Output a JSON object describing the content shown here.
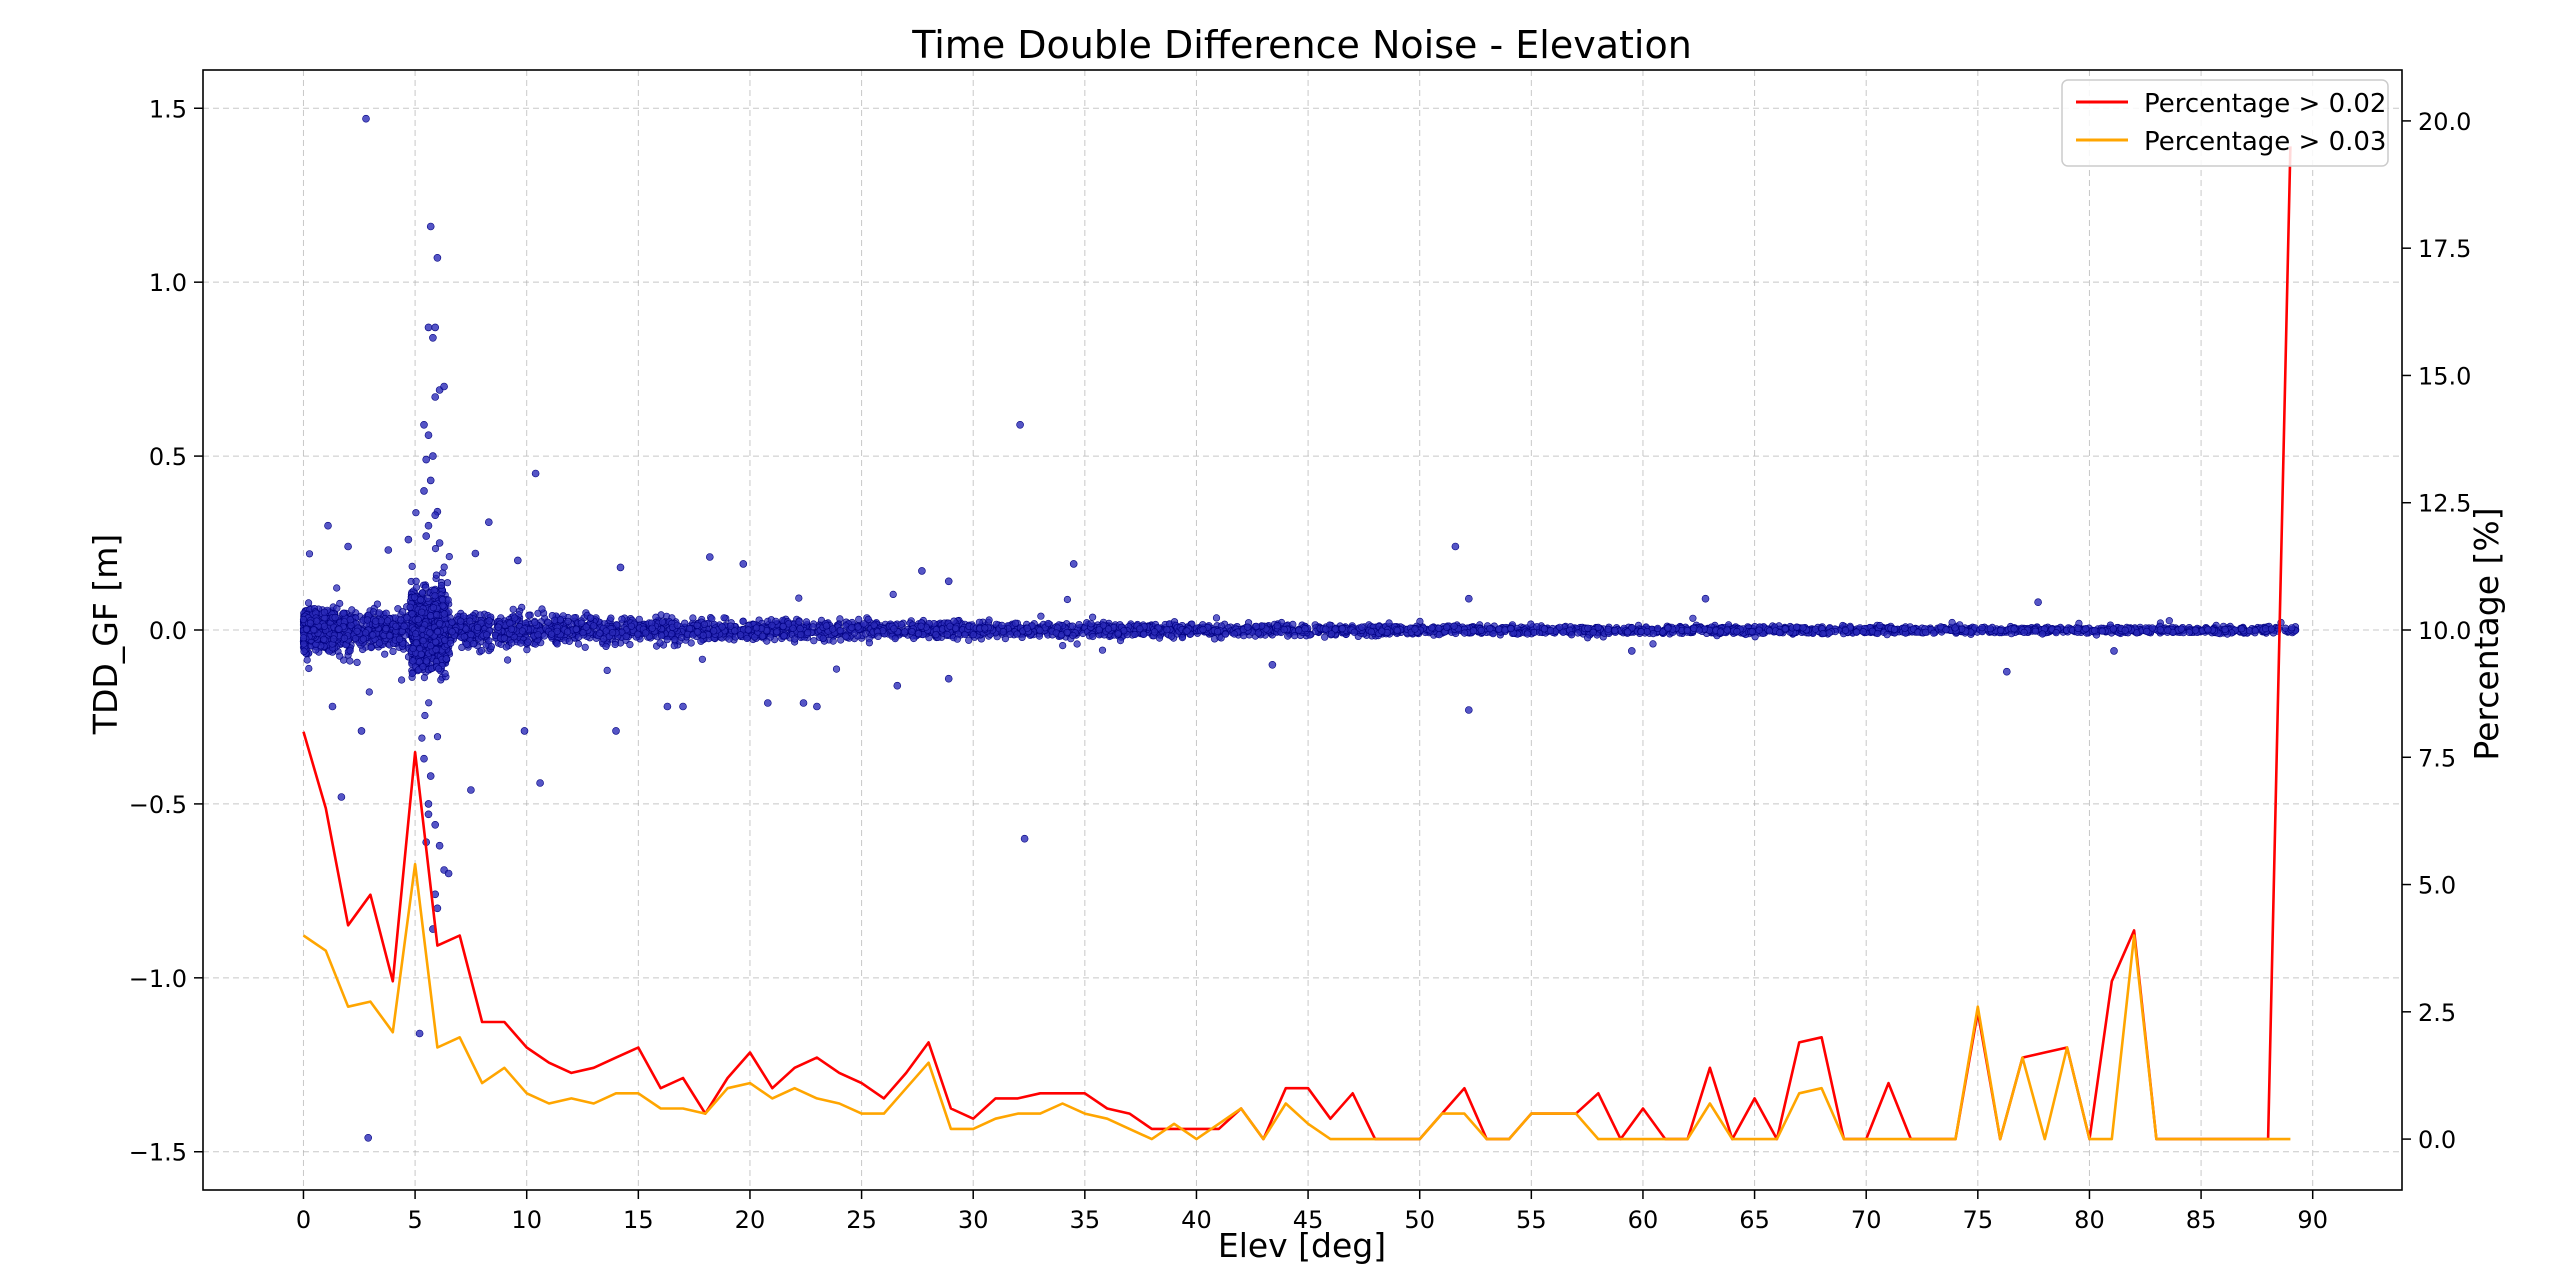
{
  "chart_data": {
    "type": "scatter",
    "title": "Time Double Difference Noise - Elevation",
    "xlabel": "Elev [deg]",
    "ylabel": "TDD_GF [m]",
    "y2label": "Percentage [%]",
    "xlim": [
      -4.5,
      94
    ],
    "ylim": [
      -1.61,
      1.61
    ],
    "y2lim": [
      -1.0,
      21.0
    ],
    "xticks": [
      0,
      5,
      10,
      15,
      20,
      25,
      30,
      35,
      40,
      45,
      50,
      55,
      60,
      65,
      70,
      75,
      80,
      85,
      90
    ],
    "yticks": [
      -1.5,
      -1.0,
      -0.5,
      0.0,
      0.5,
      1.0,
      1.5
    ],
    "y2ticks": [
      0.0,
      2.5,
      5.0,
      7.5,
      10.0,
      12.5,
      15.0,
      17.5,
      20.0
    ],
    "grid": true,
    "legend_position": "top-right",
    "scatter": {
      "color": "#2b2bb8",
      "edge_color": "#000080",
      "note_dense_band": "dense points near 0 with spread decreasing as elevation increases",
      "outliers": [
        [
          2.8,
          1.47
        ],
        [
          2.9,
          -1.46
        ],
        [
          5.7,
          1.16
        ],
        [
          5.6,
          0.87
        ],
        [
          5.9,
          0.87
        ],
        [
          6.0,
          1.07
        ],
        [
          5.8,
          0.84
        ],
        [
          6.1,
          0.69
        ],
        [
          6.3,
          0.7
        ],
        [
          5.9,
          0.67
        ],
        [
          5.4,
          0.59
        ],
        [
          5.6,
          0.56
        ],
        [
          5.8,
          0.5
        ],
        [
          5.5,
          0.49
        ],
        [
          5.7,
          0.43
        ],
        [
          5.4,
          0.4
        ],
        [
          6.0,
          0.34
        ],
        [
          5.9,
          0.33
        ],
        [
          5.6,
          0.3
        ],
        [
          5.5,
          0.27
        ],
        [
          6.1,
          0.25
        ],
        [
          1.1,
          0.3
        ],
        [
          2.0,
          0.24
        ],
        [
          3.8,
          0.23
        ],
        [
          4.7,
          0.26
        ],
        [
          7.7,
          0.22
        ],
        [
          8.3,
          0.31
        ],
        [
          9.6,
          0.2
        ],
        [
          10.4,
          0.45
        ],
        [
          14.2,
          0.18
        ],
        [
          18.2,
          0.21
        ],
        [
          19.7,
          0.19
        ],
        [
          27.7,
          0.17
        ],
        [
          28.9,
          0.14
        ],
        [
          32.1,
          0.59
        ],
        [
          34.5,
          0.19
        ],
        [
          51.6,
          0.24
        ],
        [
          52.2,
          0.09
        ],
        [
          62.8,
          0.09
        ],
        [
          77.7,
          0.08
        ],
        [
          1.7,
          -0.48
        ],
        [
          2.6,
          -0.29
        ],
        [
          1.3,
          -0.22
        ],
        [
          5.4,
          -0.37
        ],
        [
          5.7,
          -0.42
        ],
        [
          5.6,
          -0.5
        ],
        [
          5.9,
          -0.56
        ],
        [
          5.5,
          -0.61
        ],
        [
          6.1,
          -0.62
        ],
        [
          6.3,
          -0.69
        ],
        [
          6.5,
          -0.7
        ],
        [
          5.6,
          -0.53
        ],
        [
          5.2,
          -1.16
        ],
        [
          5.8,
          -0.86
        ],
        [
          5.9,
          -0.76
        ],
        [
          6.0,
          -0.8
        ],
        [
          7.5,
          -0.46
        ],
        [
          9.9,
          -0.29
        ],
        [
          10.6,
          -0.44
        ],
        [
          14.0,
          -0.29
        ],
        [
          16.3,
          -0.22
        ],
        [
          17.0,
          -0.22
        ],
        [
          20.8,
          -0.21
        ],
        [
          22.4,
          -0.21
        ],
        [
          23.0,
          -0.22
        ],
        [
          26.6,
          -0.16
        ],
        [
          28.9,
          -0.14
        ],
        [
          32.3,
          -0.6
        ],
        [
          43.4,
          -0.1
        ],
        [
          52.2,
          -0.23
        ],
        [
          76.3,
          -0.12
        ],
        [
          81.1,
          -0.06
        ],
        [
          59.5,
          -0.06
        ]
      ]
    },
    "series": [
      {
        "name": "Percentage > 0.02",
        "color": "#ff0000",
        "x": [
          0,
          1,
          2,
          3,
          4,
          5,
          6,
          7,
          8,
          9,
          10,
          11,
          12,
          13,
          14,
          15,
          16,
          17,
          18,
          19,
          20,
          21,
          22,
          23,
          24,
          25,
          26,
          27,
          28,
          29,
          30,
          31,
          32,
          33,
          34,
          35,
          36,
          37,
          38,
          39,
          40,
          41,
          42,
          43,
          44,
          45,
          46,
          47,
          48,
          49,
          50,
          51,
          52,
          53,
          54,
          55,
          56,
          57,
          58,
          59,
          60,
          61,
          62,
          63,
          64,
          65,
          66,
          67,
          68,
          69,
          70,
          71,
          72,
          73,
          74,
          75,
          76,
          77,
          78,
          79,
          80,
          81,
          82,
          83,
          84,
          85,
          86,
          87,
          88,
          89
        ],
        "values": [
          8.0,
          6.5,
          4.2,
          4.8,
          3.1,
          7.6,
          3.8,
          4.0,
          2.3,
          2.3,
          1.8,
          1.5,
          1.3,
          1.4,
          1.6,
          1.8,
          1.0,
          1.2,
          0.5,
          1.2,
          1.7,
          1.0,
          1.4,
          1.6,
          1.3,
          1.1,
          0.8,
          1.3,
          1.9,
          0.6,
          0.4,
          0.8,
          0.8,
          0.9,
          0.9,
          0.9,
          0.6,
          0.5,
          0.2,
          0.2,
          0.2,
          0.2,
          0.6,
          0.0,
          1.0,
          1.0,
          0.4,
          0.9,
          0.0,
          0.0,
          0.0,
          0.5,
          1.0,
          0.0,
          0.0,
          0.5,
          0.5,
          0.5,
          0.9,
          0.0,
          0.6,
          0.0,
          0.0,
          1.4,
          0.0,
          0.8,
          0.0,
          1.9,
          2.0,
          0.0,
          0.0,
          1.1,
          0.0,
          0.0,
          0.0,
          2.5,
          0.0,
          1.6,
          1.7,
          1.8,
          0.0,
          3.1,
          4.1,
          0.0,
          0.0,
          0.0,
          0.0,
          0.0,
          0.0,
          19.5
        ]
      },
      {
        "name": "Percentage > 0.03",
        "color": "#ffa500",
        "x": [
          0,
          1,
          2,
          3,
          4,
          5,
          6,
          7,
          8,
          9,
          10,
          11,
          12,
          13,
          14,
          15,
          16,
          17,
          18,
          19,
          20,
          21,
          22,
          23,
          24,
          25,
          26,
          27,
          28,
          29,
          30,
          31,
          32,
          33,
          34,
          35,
          36,
          37,
          38,
          39,
          40,
          41,
          42,
          43,
          44,
          45,
          46,
          47,
          48,
          49,
          50,
          51,
          52,
          53,
          54,
          55,
          56,
          57,
          58,
          59,
          60,
          61,
          62,
          63,
          64,
          65,
          66,
          67,
          68,
          69,
          70,
          71,
          72,
          73,
          74,
          75,
          76,
          77,
          78,
          79,
          80,
          81,
          82,
          83,
          84,
          85,
          86,
          87,
          88,
          89
        ],
        "values": [
          4.0,
          3.7,
          2.6,
          2.7,
          2.1,
          5.4,
          1.8,
          2.0,
          1.1,
          1.4,
          0.9,
          0.7,
          0.8,
          0.7,
          0.9,
          0.9,
          0.6,
          0.6,
          0.5,
          1.0,
          1.1,
          0.8,
          1.0,
          0.8,
          0.7,
          0.5,
          0.5,
          1.0,
          1.5,
          0.2,
          0.2,
          0.4,
          0.5,
          0.5,
          0.7,
          0.5,
          0.4,
          0.2,
          0.0,
          0.3,
          0.0,
          0.3,
          0.6,
          0.0,
          0.7,
          0.3,
          0.0,
          0.0,
          0.0,
          0.0,
          0.0,
          0.5,
          0.5,
          0.0,
          0.0,
          0.5,
          0.5,
          0.5,
          0.0,
          0.0,
          0.0,
          0.0,
          0.0,
          0.7,
          0.0,
          0.0,
          0.0,
          0.9,
          1.0,
          0.0,
          0.0,
          0.0,
          0.0,
          0.0,
          0.0,
          2.6,
          0.0,
          1.6,
          0.0,
          1.8,
          0.0,
          0.0,
          4.0,
          0.0,
          0.0,
          0.0,
          0.0,
          0.0,
          0.0,
          0.0
        ]
      }
    ]
  }
}
